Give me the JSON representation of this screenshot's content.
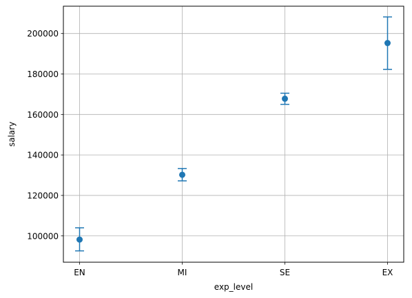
{
  "chart_data": {
    "type": "scatter",
    "subtype": "errorbar",
    "title": "",
    "xlabel": "exp_level",
    "ylabel": "salary",
    "categories": [
      "EN",
      "MI",
      "SE",
      "EX"
    ],
    "series": [
      {
        "values": [
          98200,
          130200,
          167800,
          195300
        ],
        "error_low": [
          92600,
          127200,
          165000,
          182300
        ],
        "error_high": [
          104000,
          133300,
          170500,
          208200
        ]
      }
    ],
    "ylim": [
      87000,
      213500
    ],
    "yticks": [
      100000,
      120000,
      140000,
      160000,
      180000,
      200000
    ],
    "grid": true,
    "legend": "none",
    "colors": {
      "series": "#1f77b4",
      "grid": "#b0b0b0",
      "axes": "#000000"
    }
  }
}
